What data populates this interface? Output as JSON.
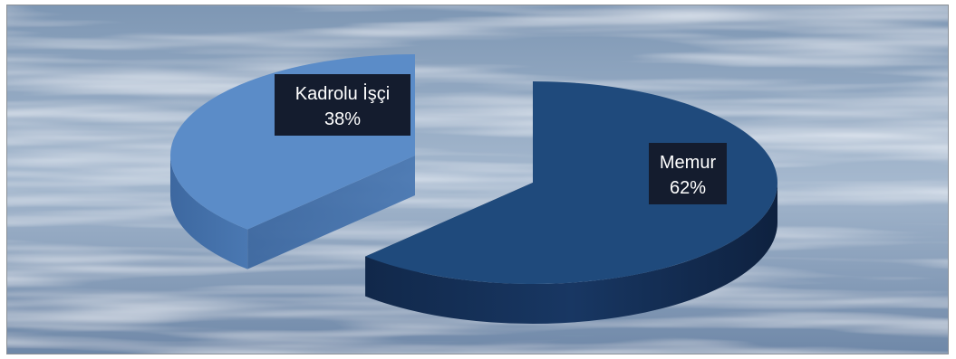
{
  "chart_data": {
    "type": "pie",
    "title": "",
    "style": "3d-exploded",
    "background": "water-ripple",
    "slices": [
      {
        "label": "Kadrolu İşçi",
        "value": 38,
        "display": "38%",
        "color": "#5b8cc8"
      },
      {
        "label": "Memur",
        "value": 62,
        "display": "62%",
        "color": "#1f4a7c"
      }
    ]
  }
}
